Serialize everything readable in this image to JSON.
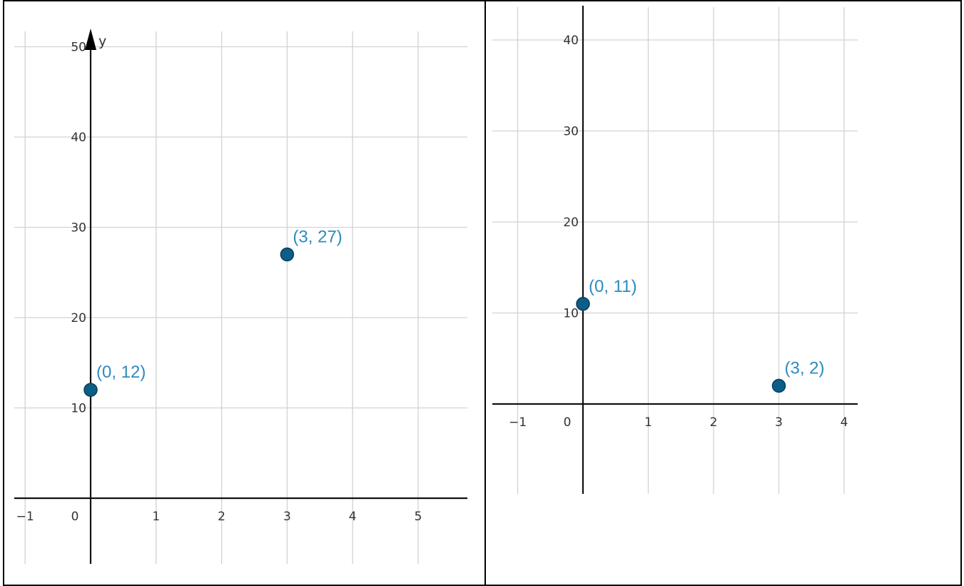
{
  "colors": {
    "point_fill": "#0b5e87",
    "point_stroke": "#0a3d57",
    "label": "#2d8bbf",
    "grid": "#d2d2d2",
    "axis": "#111111"
  },
  "chart_data": [
    {
      "type": "scatter",
      "title": "",
      "xlabel": "",
      "ylabel": "y",
      "grid": true,
      "xlim": [
        -1.2,
        5.7
      ],
      "ylim": [
        -7,
        52
      ],
      "x_ticks": [
        -1,
        0,
        1,
        2,
        3,
        4,
        5
      ],
      "x_tick_labels": [
        "−1",
        "0",
        "1",
        "2",
        "3",
        "4",
        "5"
      ],
      "y_ticks": [
        10,
        20,
        30,
        40,
        50
      ],
      "y_tick_labels": [
        "10",
        "20",
        "30",
        "40",
        "50"
      ],
      "points": [
        {
          "x": 0,
          "y": 12,
          "label": "(0, 12)"
        },
        {
          "x": 3,
          "y": 27,
          "label": "(3, 27)"
        }
      ]
    },
    {
      "type": "scatter",
      "title": "",
      "xlabel": "",
      "ylabel": "",
      "grid": true,
      "xlim": [
        -1.4,
        4.2
      ],
      "ylim": [
        -10,
        44
      ],
      "x_ticks": [
        -1,
        0,
        1,
        2,
        3,
        4
      ],
      "x_tick_labels": [
        "−1",
        "0",
        "1",
        "2",
        "3",
        "4"
      ],
      "y_ticks": [
        10,
        20,
        30,
        40
      ],
      "y_tick_labels": [
        "10",
        "20",
        "30",
        "40"
      ],
      "points": [
        {
          "x": 0,
          "y": 11,
          "label": "(0, 11)"
        },
        {
          "x": 3,
          "y": 2,
          "label": "(3, 2)"
        }
      ]
    }
  ]
}
